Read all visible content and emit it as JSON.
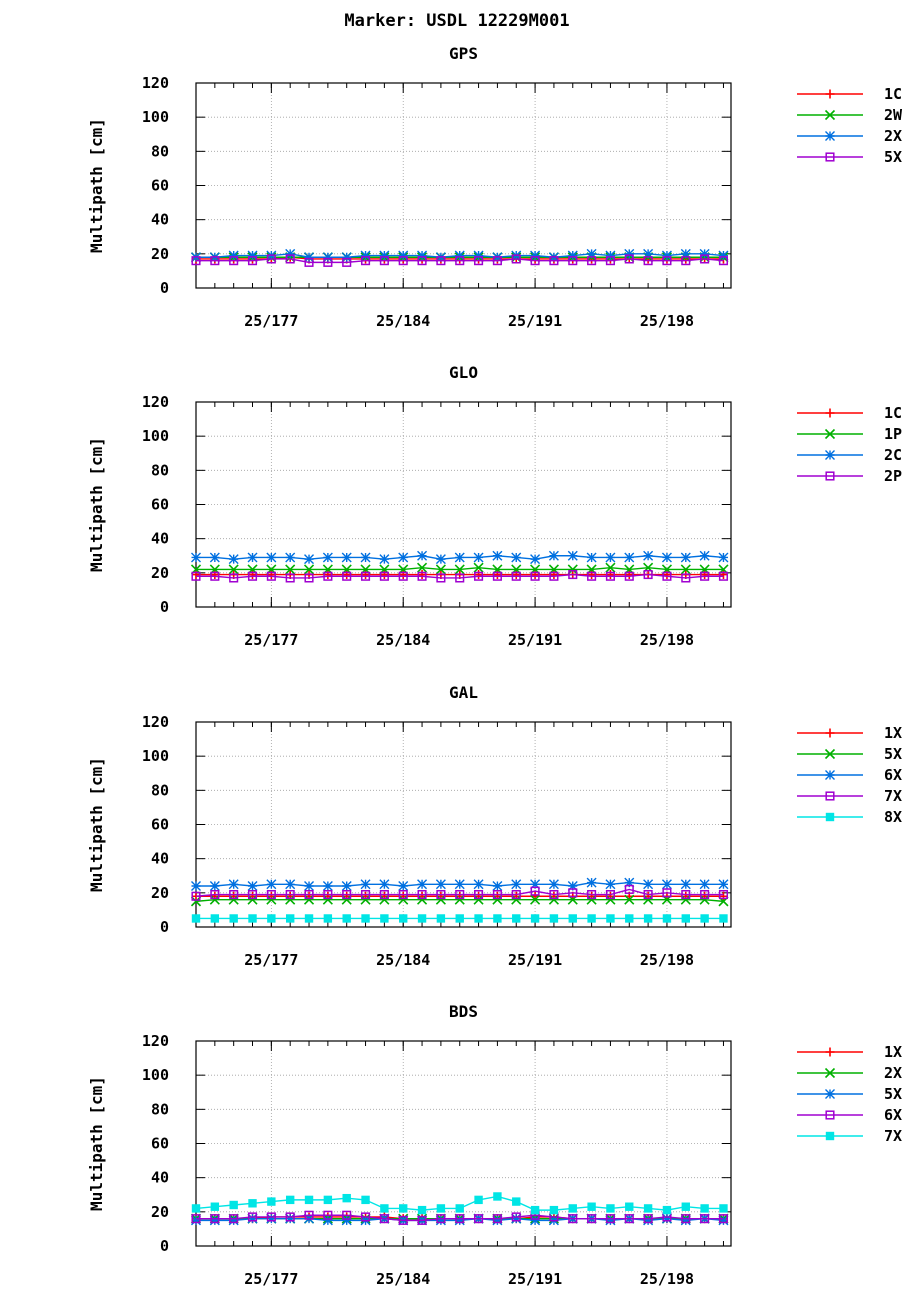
{
  "page_title": "Marker: USDL 12229M001",
  "chart_data": [
    {
      "type": "line",
      "title": "GPS",
      "ylabel": "Multipath [cm]",
      "ylim": [
        0,
        120
      ],
      "yticks": [
        0,
        20,
        40,
        60,
        80,
        100,
        120
      ],
      "xlim": [
        173,
        201.4
      ],
      "xticks": [
        {
          "v": 177,
          "label": "25/177"
        },
        {
          "v": 184,
          "label": "25/184"
        },
        {
          "v": 191,
          "label": "25/191"
        },
        {
          "v": 198,
          "label": "25/198"
        }
      ],
      "x_start": 173,
      "x_step": 1,
      "grid": true,
      "legend": "right",
      "series": [
        {
          "name": "1C",
          "color": "#ff0000",
          "marker": "plus",
          "values": [
            17,
            17,
            17,
            17,
            17,
            18,
            17,
            17,
            17,
            17,
            17,
            17,
            17,
            17,
            17,
            17,
            17,
            17,
            17,
            17,
            17,
            17,
            17,
            17,
            17,
            17,
            17,
            17,
            17
          ]
        },
        {
          "name": "2W",
          "color": "#00b000",
          "marker": "x",
          "values": [
            18,
            18,
            18,
            18,
            18,
            18,
            18,
            18,
            18,
            18,
            18,
            18,
            18,
            18,
            18,
            18,
            18,
            18,
            18,
            18,
            18,
            18,
            18,
            18,
            18,
            18,
            18,
            18,
            18
          ]
        },
        {
          "name": "2X",
          "color": "#0070e0",
          "marker": "star",
          "values": [
            18,
            18,
            19,
            19,
            19,
            20,
            18,
            18,
            18,
            19,
            19,
            19,
            19,
            18,
            19,
            19,
            18,
            19,
            19,
            18,
            19,
            20,
            19,
            20,
            20,
            19,
            20,
            20,
            19
          ]
        },
        {
          "name": "5X",
          "color": "#a000d0",
          "marker": "square",
          "values": [
            16,
            16,
            16,
            16,
            17,
            17,
            15,
            15,
            15,
            16,
            16,
            16,
            16,
            16,
            16,
            16,
            16,
            17,
            16,
            16,
            16,
            16,
            16,
            17,
            16,
            16,
            16,
            17,
            16
          ]
        }
      ]
    },
    {
      "type": "line",
      "title": "GLO",
      "ylabel": "Multipath [cm]",
      "ylim": [
        0,
        120
      ],
      "yticks": [
        0,
        20,
        40,
        60,
        80,
        100,
        120
      ],
      "xlim": [
        173,
        201.4
      ],
      "xticks": [
        {
          "v": 177,
          "label": "25/177"
        },
        {
          "v": 184,
          "label": "25/184"
        },
        {
          "v": 191,
          "label": "25/191"
        },
        {
          "v": 198,
          "label": "25/198"
        }
      ],
      "x_start": 173,
      "x_step": 1,
      "grid": true,
      "legend": "right",
      "series": [
        {
          "name": "1C",
          "color": "#ff0000",
          "marker": "plus",
          "values": [
            19,
            19,
            19,
            19,
            19,
            19,
            19,
            19,
            19,
            19,
            19,
            19,
            19,
            19,
            19,
            19,
            19,
            19,
            19,
            19,
            19,
            19,
            19,
            19,
            19,
            19,
            19,
            19,
            19
          ]
        },
        {
          "name": "1P",
          "color": "#00b000",
          "marker": "x",
          "values": [
            22,
            22,
            22,
            22,
            22,
            22,
            22,
            22,
            22,
            22,
            22,
            22,
            23,
            22,
            22,
            23,
            22,
            22,
            22,
            22,
            22,
            22,
            23,
            22,
            23,
            22,
            22,
            22,
            22
          ]
        },
        {
          "name": "2C",
          "color": "#0070e0",
          "marker": "star",
          "values": [
            29,
            29,
            28,
            29,
            29,
            29,
            28,
            29,
            29,
            29,
            28,
            29,
            30,
            28,
            29,
            29,
            30,
            29,
            28,
            30,
            30,
            29,
            29,
            29,
            30,
            29,
            29,
            30,
            29
          ]
        },
        {
          "name": "2P",
          "color": "#a000d0",
          "marker": "square",
          "values": [
            18,
            18,
            17,
            18,
            18,
            17,
            17,
            18,
            18,
            18,
            18,
            18,
            18,
            17,
            17,
            18,
            18,
            18,
            18,
            18,
            19,
            18,
            18,
            18,
            19,
            18,
            17,
            18,
            18
          ]
        }
      ]
    },
    {
      "type": "line",
      "title": "GAL",
      "ylabel": "Multipath [cm]",
      "ylim": [
        0,
        120
      ],
      "yticks": [
        0,
        20,
        40,
        60,
        80,
        100,
        120
      ],
      "xlim": [
        173,
        201.4
      ],
      "xticks": [
        {
          "v": 177,
          "label": "25/177"
        },
        {
          "v": 184,
          "label": "25/184"
        },
        {
          "v": 191,
          "label": "25/191"
        },
        {
          "v": 198,
          "label": "25/198"
        }
      ],
      "x_start": 173,
      "x_step": 1,
      "grid": true,
      "legend": "right",
      "series": [
        {
          "name": "1X",
          "color": "#ff0000",
          "marker": "plus",
          "values": [
            18,
            18,
            18,
            18,
            18,
            18,
            18,
            18,
            18,
            18,
            18,
            18,
            18,
            18,
            18,
            18,
            18,
            18,
            18,
            18,
            18,
            18,
            18,
            18,
            18,
            18,
            18,
            18,
            18
          ]
        },
        {
          "name": "5X",
          "color": "#00b000",
          "marker": "x",
          "values": [
            15,
            16,
            16,
            16,
            16,
            16,
            16,
            16,
            16,
            16,
            16,
            16,
            16,
            16,
            16,
            16,
            16,
            16,
            16,
            16,
            16,
            16,
            16,
            16,
            16,
            16,
            16,
            16,
            15
          ]
        },
        {
          "name": "6X",
          "color": "#0070e0",
          "marker": "star",
          "values": [
            24,
            24,
            25,
            24,
            25,
            25,
            24,
            24,
            24,
            25,
            25,
            24,
            25,
            25,
            25,
            25,
            24,
            25,
            25,
            25,
            24,
            26,
            25,
            26,
            25,
            25,
            25,
            25,
            25
          ]
        },
        {
          "name": "7X",
          "color": "#a000d0",
          "marker": "square",
          "values": [
            18,
            19,
            19,
            19,
            19,
            19,
            19,
            19,
            19,
            19,
            19,
            19,
            19,
            19,
            19,
            19,
            19,
            19,
            21,
            19,
            20,
            19,
            19,
            22,
            19,
            20,
            19,
            19,
            19
          ]
        },
        {
          "name": "8X",
          "color": "#00e5e5",
          "marker": "filled-square",
          "values": [
            5,
            5,
            5,
            5,
            5,
            5,
            5,
            5,
            5,
            5,
            5,
            5,
            5,
            5,
            5,
            5,
            5,
            5,
            5,
            5,
            5,
            5,
            5,
            5,
            5,
            5,
            5,
            5,
            5
          ]
        }
      ]
    },
    {
      "type": "line",
      "title": "BDS",
      "ylabel": "Multipath [cm]",
      "ylim": [
        0,
        120
      ],
      "yticks": [
        0,
        20,
        40,
        60,
        80,
        100,
        120
      ],
      "xlim": [
        173,
        201.4
      ],
      "xticks": [
        {
          "v": 177,
          "label": "25/177"
        },
        {
          "v": 184,
          "label": "25/184"
        },
        {
          "v": 191,
          "label": "25/191"
        },
        {
          "v": 198,
          "label": "25/198"
        }
      ],
      "x_start": 173,
      "x_step": 1,
      "grid": true,
      "legend": "right",
      "series": [
        {
          "name": "1X",
          "color": "#ff0000",
          "marker": "plus",
          "values": [
            16,
            16,
            16,
            16,
            17,
            17,
            17,
            17,
            17,
            17,
            17,
            16,
            16,
            16,
            16,
            16,
            16,
            16,
            17,
            17,
            16,
            16,
            16,
            16,
            16,
            16,
            16,
            16,
            16
          ]
        },
        {
          "name": "2X",
          "color": "#00b000",
          "marker": "x",
          "values": [
            16,
            16,
            16,
            16,
            16,
            16,
            16,
            16,
            16,
            16,
            16,
            16,
            16,
            16,
            16,
            16,
            16,
            16,
            16,
            16,
            16,
            16,
            16,
            16,
            16,
            16,
            16,
            16,
            16
          ]
        },
        {
          "name": "5X",
          "color": "#0070e0",
          "marker": "star",
          "values": [
            15,
            15,
            15,
            16,
            16,
            16,
            16,
            15,
            15,
            15,
            16,
            15,
            15,
            15,
            15,
            16,
            15,
            16,
            15,
            15,
            16,
            16,
            15,
            16,
            15,
            16,
            15,
            16,
            15
          ]
        },
        {
          "name": "6X",
          "color": "#a000d0",
          "marker": "square",
          "values": [
            16,
            16,
            16,
            17,
            17,
            17,
            18,
            18,
            18,
            17,
            16,
            15,
            15,
            16,
            16,
            16,
            16,
            17,
            18,
            17,
            16,
            16,
            16,
            16,
            16,
            17,
            16,
            16,
            16
          ]
        },
        {
          "name": "7X",
          "color": "#00e5e5",
          "marker": "filled-square",
          "values": [
            22,
            23,
            24,
            25,
            26,
            27,
            27,
            27,
            28,
            27,
            22,
            22,
            21,
            22,
            22,
            27,
            29,
            26,
            21,
            21,
            22,
            23,
            22,
            23,
            22,
            21,
            23,
            22,
            22
          ]
        }
      ]
    }
  ]
}
